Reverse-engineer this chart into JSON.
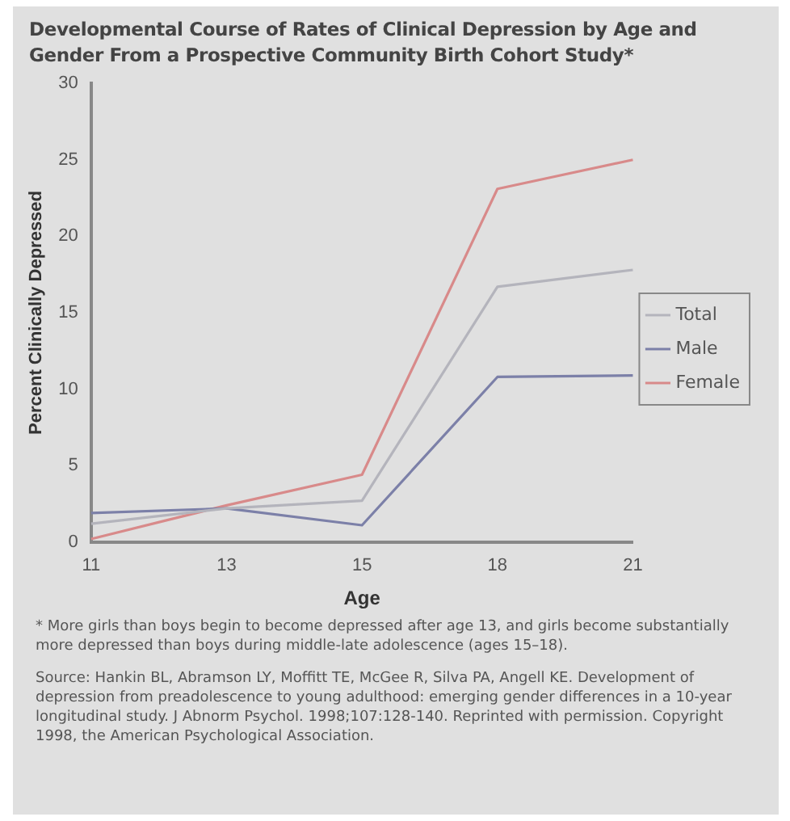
{
  "chart_data": {
    "type": "line",
    "title": "Developmental Course of Rates of Clinical Depression by Age and Gender From a Prospective Community Birth Cohort Study*",
    "xlabel": "Age",
    "ylabel": "Percent Clinically Depressed",
    "categories": [
      "11",
      "13",
      "15",
      "18",
      "21"
    ],
    "series": [
      {
        "name": "Total",
        "color": "#b4b4bc",
        "values": [
          1.2,
          2.2,
          2.7,
          16.7,
          17.8
        ]
      },
      {
        "name": "Male",
        "color": "#7c80a8",
        "values": [
          1.9,
          2.2,
          1.1,
          10.8,
          10.9
        ]
      },
      {
        "name": "Female",
        "color": "#d88a8a",
        "values": [
          0.2,
          2.4,
          4.4,
          23.1,
          25.0
        ]
      }
    ],
    "ylim": [
      0,
      30
    ],
    "yticks": [
      0,
      5,
      10,
      15,
      20,
      25,
      30
    ],
    "grid": false,
    "legend": "right",
    "marker": "none",
    "line_style": "solid",
    "annotations": [
      "* More girls than boys begin to become depressed after age 13, and girls become substantially more depressed than boys during middle-late adolescence (ages 15–18).",
      "Source: Hankin BL, Abramson LY, Moffitt TE, McGee R, Silva PA, Angell KE. Development of depression from preadolescence to young adulthood: emerging gender differences in a 10-year longitudinal study. J Abnorm Psychol. 1998;107:128-140. Reprinted with permission. Copyright 1998, the American Psychological Association."
    ]
  }
}
